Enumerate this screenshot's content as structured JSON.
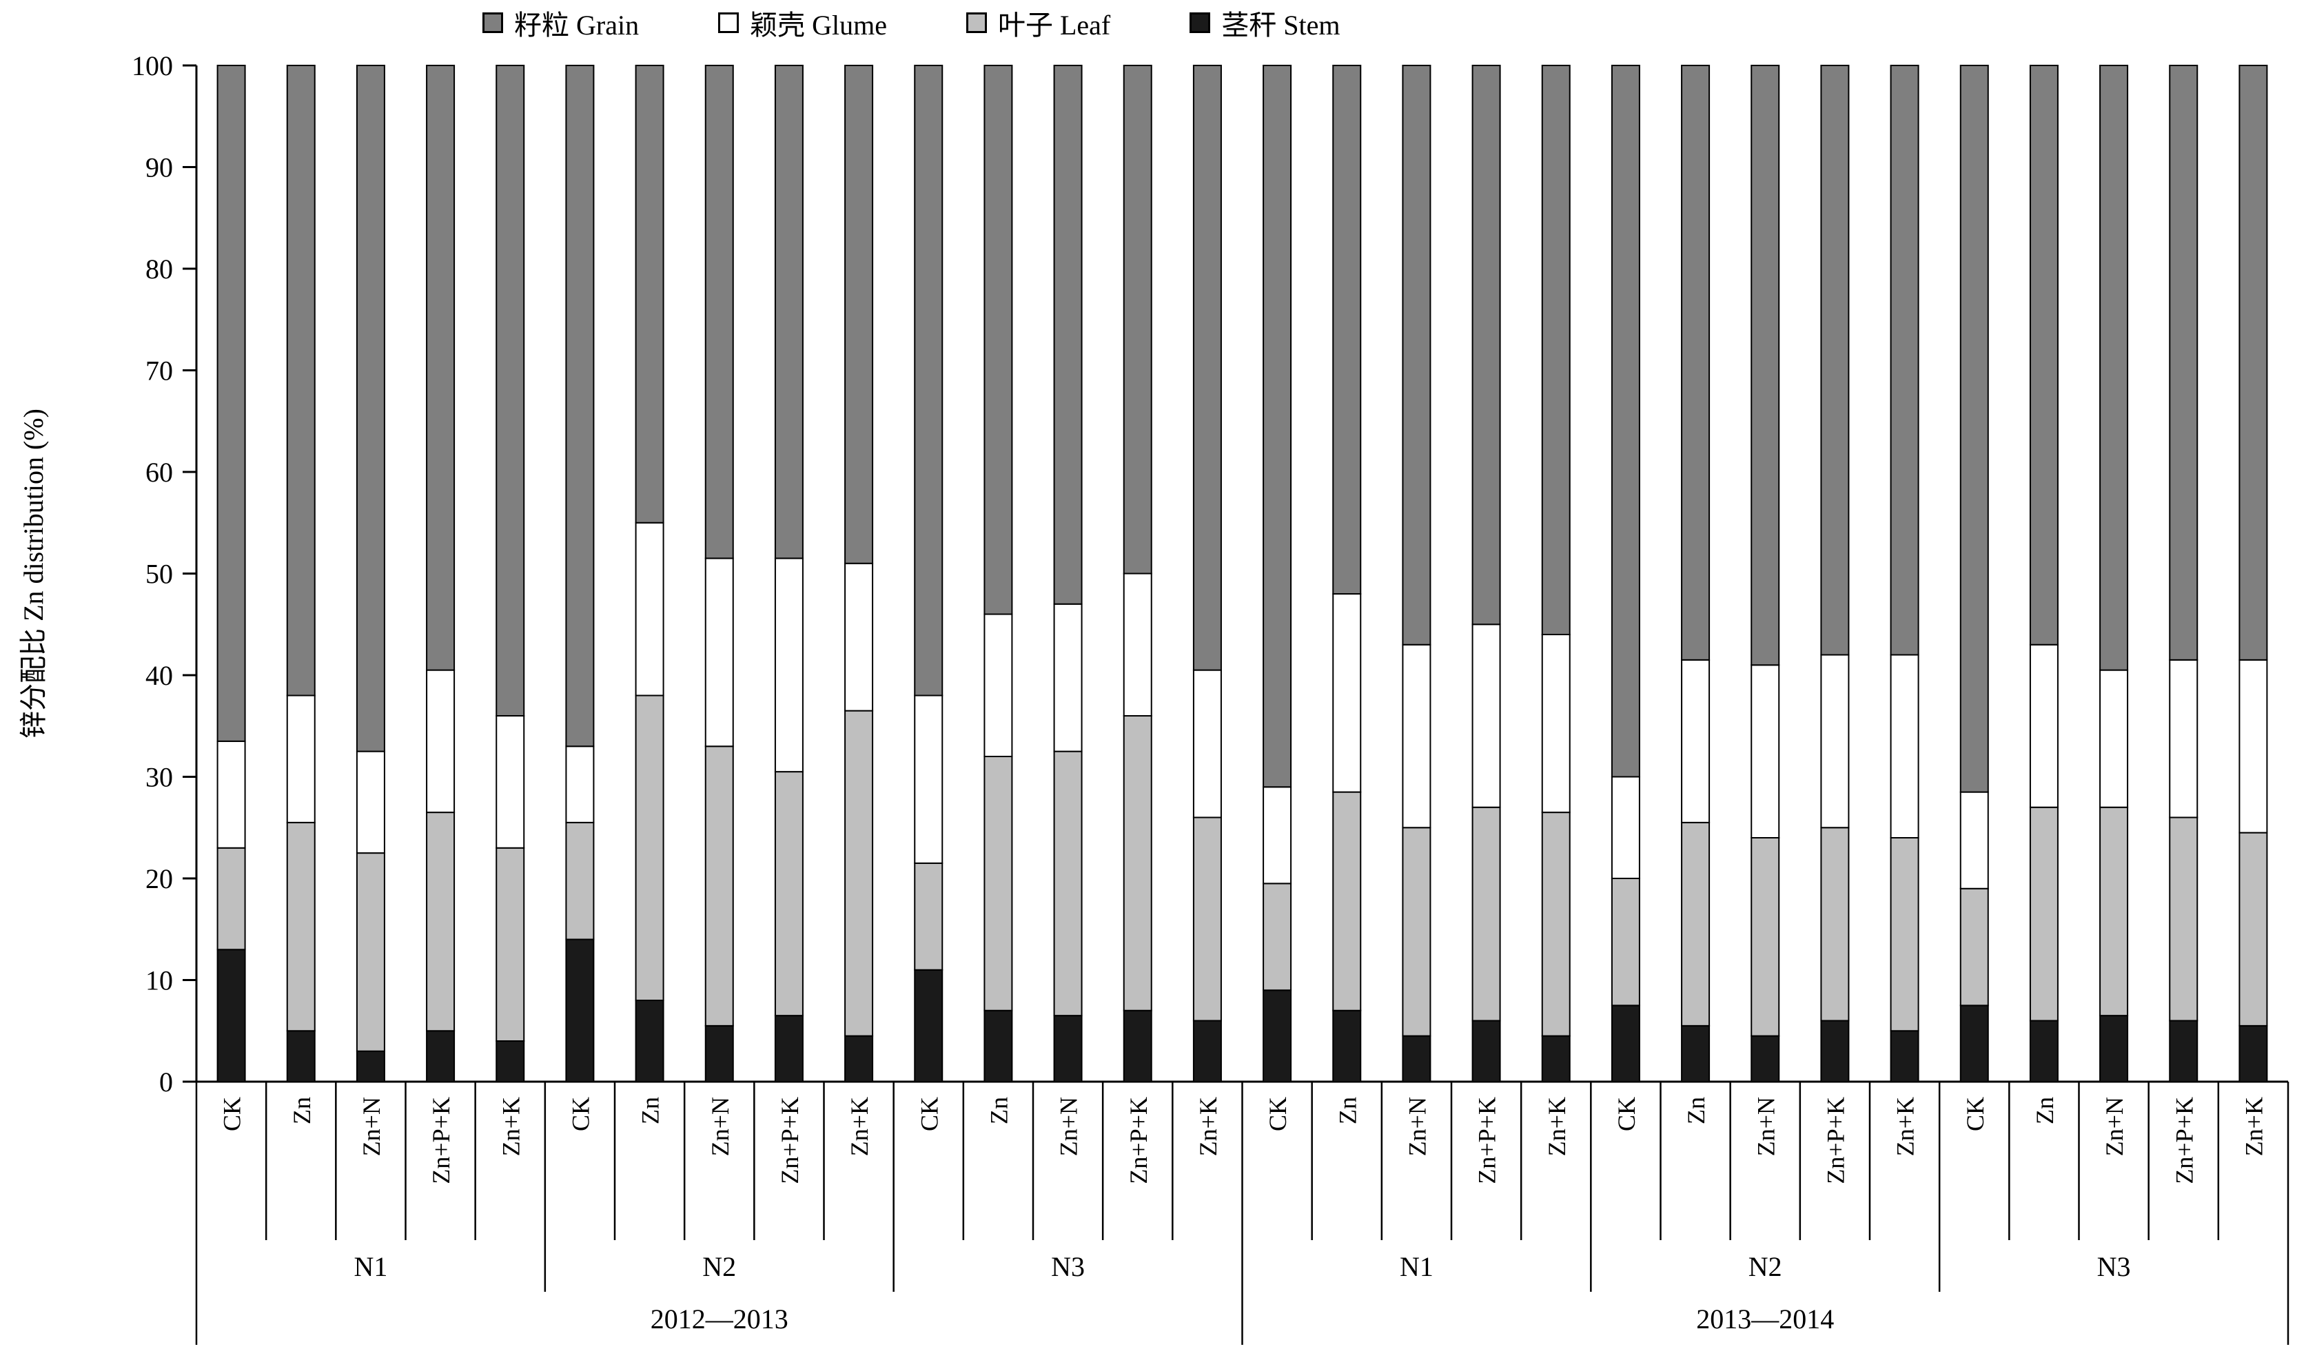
{
  "chart_data": {
    "type": "bar",
    "stacked": true,
    "title": "",
    "ylabel": "锌分配比 Zn distribution (%)",
    "ylim": [
      0,
      100
    ],
    "ytick_step": 10,
    "yticks": [
      0,
      10,
      20,
      30,
      40,
      50,
      60,
      70,
      80,
      90,
      100
    ],
    "grid": false,
    "legend_position": "top",
    "segment_order": [
      "stem",
      "leaf",
      "glume",
      "grain"
    ],
    "segments": {
      "grain": {
        "label": "籽粒 Grain",
        "color": "#7f7f7f"
      },
      "glume": {
        "label": "颖壳 Glume",
        "color": "#ffffff"
      },
      "leaf": {
        "label": "叶子 Leaf",
        "color": "#bfbfbf"
      },
      "stem": {
        "label": "茎秆 Stem",
        "color": "#1a1a1a"
      }
    },
    "legend_order": [
      "grain",
      "glume",
      "leaf",
      "stem"
    ],
    "treatments": [
      "CK",
      "Zn",
      "Zn+N",
      "Zn+P+K",
      "Zn+K"
    ],
    "years": [
      {
        "label": "2012—2013",
        "groups": [
          {
            "label": "N1",
            "bars": [
              [
                13,
                10,
                10.5,
                66.5
              ],
              [
                5,
                20.5,
                12.5,
                62
              ],
              [
                3,
                19.5,
                10,
                67.5
              ],
              [
                5,
                21.5,
                14,
                59.5
              ],
              [
                4,
                19,
                13,
                64
              ]
            ]
          },
          {
            "label": "N2",
            "bars": [
              [
                14,
                11.5,
                7.5,
                67
              ],
              [
                8,
                30,
                17,
                45
              ],
              [
                5.5,
                27.5,
                18.5,
                48.5
              ],
              [
                6.5,
                24,
                21,
                48.5
              ],
              [
                4.5,
                32,
                14.5,
                49
              ]
            ]
          },
          {
            "label": "N3",
            "bars": [
              [
                11,
                10.5,
                16.5,
                62
              ],
              [
                7,
                25,
                14,
                54
              ],
              [
                6.5,
                26,
                14.5,
                53
              ],
              [
                7,
                29,
                14,
                50
              ],
              [
                6,
                20,
                14.5,
                59.5
              ]
            ]
          }
        ]
      },
      {
        "label": "2013—2014",
        "groups": [
          {
            "label": "N1",
            "bars": [
              [
                9,
                10.5,
                9.5,
                71
              ],
              [
                7,
                21.5,
                19.5,
                52
              ],
              [
                4.5,
                20.5,
                18,
                57
              ],
              [
                6,
                21,
                18,
                55
              ],
              [
                4.5,
                22,
                17.5,
                56
              ]
            ]
          },
          {
            "label": "N2",
            "bars": [
              [
                7.5,
                12.5,
                10,
                70
              ],
              [
                5.5,
                20,
                16,
                58.5
              ],
              [
                4.5,
                19.5,
                17,
                59
              ],
              [
                6,
                19,
                17,
                58
              ],
              [
                5,
                19,
                18,
                58
              ]
            ]
          },
          {
            "label": "N3",
            "bars": [
              [
                7.5,
                11.5,
                9.5,
                71.5
              ],
              [
                6,
                21,
                16,
                57
              ],
              [
                6.5,
                20.5,
                13.5,
                59.5
              ],
              [
                6,
                20,
                15.5,
                58.5
              ],
              [
                5.5,
                19,
                17,
                58.5
              ]
            ]
          }
        ]
      }
    ]
  }
}
